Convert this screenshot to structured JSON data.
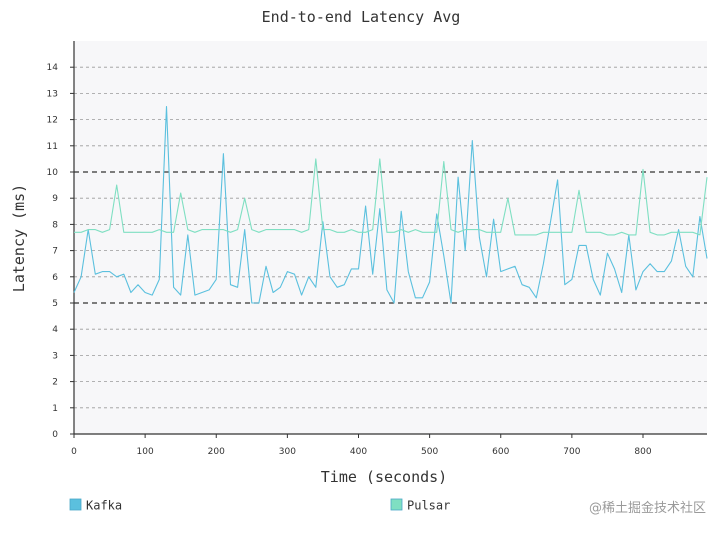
{
  "chart_data": {
    "type": "line",
    "title": "End-to-end Latency Avg",
    "xlabel": "Time (seconds)",
    "ylabel": "Latency (ms)",
    "xlim": [
      0,
      890
    ],
    "ylim": [
      0,
      15
    ],
    "xticks": [
      0,
      100,
      200,
      300,
      400,
      500,
      600,
      700,
      800
    ],
    "yticks": [
      0,
      1,
      2,
      3,
      4,
      5,
      6,
      7,
      8,
      9,
      10,
      11,
      12,
      13,
      14
    ],
    "major_gridlines": [
      5,
      10
    ],
    "grid": true,
    "legend_position": "bottom",
    "series": [
      {
        "name": "Kafka",
        "color": "#5bc0de",
        "x": [
          0,
          10,
          20,
          30,
          40,
          50,
          60,
          70,
          80,
          90,
          100,
          110,
          120,
          130,
          140,
          150,
          160,
          170,
          180,
          190,
          200,
          210,
          220,
          230,
          240,
          250,
          260,
          270,
          280,
          290,
          300,
          310,
          320,
          330,
          340,
          350,
          360,
          370,
          380,
          390,
          400,
          410,
          420,
          430,
          440,
          450,
          460,
          470,
          480,
          490,
          500,
          510,
          520,
          530,
          540,
          550,
          560,
          570,
          580,
          590,
          600,
          610,
          620,
          630,
          640,
          650,
          660,
          670,
          680,
          690,
          700,
          710,
          720,
          730,
          740,
          750,
          760,
          770,
          780,
          790,
          800,
          810,
          820,
          830,
          840,
          850,
          860,
          870,
          880,
          890
        ],
        "values": [
          5.4,
          6.0,
          7.8,
          6.1,
          6.2,
          6.2,
          6.0,
          6.1,
          5.4,
          5.7,
          5.4,
          5.3,
          5.9,
          12.5,
          5.6,
          5.3,
          7.6,
          5.3,
          5.4,
          5.5,
          5.9,
          10.7,
          5.7,
          5.6,
          7.8,
          5.0,
          5.0,
          6.4,
          5.4,
          5.6,
          6.2,
          6.1,
          5.3,
          6.0,
          5.6,
          8.1,
          6.0,
          5.6,
          5.7,
          6.3,
          6.3,
          8.7,
          6.1,
          8.6,
          5.5,
          5.0,
          8.5,
          6.2,
          5.2,
          5.2,
          5.8,
          8.4,
          6.8,
          5.0,
          9.8,
          7.0,
          11.2,
          7.5,
          6.0,
          8.2,
          6.2,
          6.3,
          6.4,
          5.7,
          5.6,
          5.2,
          6.5,
          8.1,
          9.7,
          5.7,
          5.9,
          7.2,
          7.2,
          5.9,
          5.3,
          6.9,
          6.3,
          5.4,
          7.6,
          5.5,
          6.2,
          6.5,
          6.2,
          6.2,
          6.6,
          7.8,
          6.4,
          6.0,
          8.3,
          6.7
        ]
      },
      {
        "name": "Pulsar",
        "color": "#7fdfc2",
        "x": [
          0,
          10,
          20,
          30,
          40,
          50,
          60,
          70,
          80,
          90,
          100,
          110,
          120,
          130,
          140,
          150,
          160,
          170,
          180,
          190,
          200,
          210,
          220,
          230,
          240,
          250,
          260,
          270,
          280,
          290,
          300,
          310,
          320,
          330,
          340,
          350,
          360,
          370,
          380,
          390,
          400,
          410,
          420,
          430,
          440,
          450,
          460,
          470,
          480,
          490,
          500,
          510,
          520,
          530,
          540,
          550,
          560,
          570,
          580,
          590,
          600,
          610,
          620,
          630,
          640,
          650,
          660,
          670,
          680,
          690,
          700,
          710,
          720,
          730,
          740,
          750,
          760,
          770,
          780,
          790,
          800,
          810,
          820,
          830,
          840,
          850,
          860,
          870,
          880,
          890
        ],
        "values": [
          7.7,
          7.7,
          7.8,
          7.8,
          7.7,
          7.8,
          9.5,
          7.7,
          7.7,
          7.7,
          7.7,
          7.7,
          7.8,
          7.7,
          7.7,
          9.2,
          7.8,
          7.7,
          7.8,
          7.8,
          7.8,
          7.8,
          7.7,
          7.8,
          9.0,
          7.8,
          7.7,
          7.8,
          7.8,
          7.8,
          7.8,
          7.8,
          7.7,
          7.8,
          10.5,
          7.8,
          7.8,
          7.7,
          7.7,
          7.8,
          7.7,
          7.7,
          7.8,
          10.5,
          7.7,
          7.7,
          7.8,
          7.7,
          7.8,
          7.7,
          7.7,
          7.7,
          10.4,
          7.8,
          7.7,
          7.8,
          7.8,
          7.8,
          7.7,
          7.7,
          7.7,
          9.0,
          7.6,
          7.6,
          7.6,
          7.6,
          7.7,
          7.7,
          7.7,
          7.7,
          7.7,
          9.3,
          7.7,
          7.7,
          7.7,
          7.6,
          7.6,
          7.7,
          7.6,
          7.6,
          10.1,
          7.7,
          7.6,
          7.6,
          7.7,
          7.7,
          7.7,
          7.7,
          7.6,
          9.8
        ]
      }
    ]
  },
  "watermark": "@稀土掘金技术社区"
}
